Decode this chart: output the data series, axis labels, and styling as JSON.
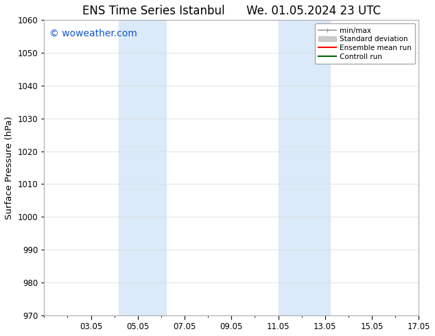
{
  "title_left": "ENS Time Series Istanbul",
  "title_right": "We. 01.05.2024 23 UTC",
  "ylabel": "Surface Pressure (hPa)",
  "ylim": [
    970,
    1060
  ],
  "yticks": [
    970,
    980,
    990,
    1000,
    1010,
    1020,
    1030,
    1040,
    1050,
    1060
  ],
  "xlim": [
    1.0,
    17.0
  ],
  "xtick_positions": [
    3,
    5,
    7,
    9,
    11,
    13,
    15,
    17
  ],
  "xtick_labels": [
    "03.05",
    "05.05",
    "07.05",
    "09.05",
    "11.05",
    "13.05",
    "15.05",
    "17.05"
  ],
  "watermark": "© woweather.com",
  "watermark_color": "#1155cc",
  "bg_color": "#ffffff",
  "plot_bg_color": "#ffffff",
  "shaded_regions": [
    {
      "x_start": 4.2,
      "x_end": 6.2,
      "color": "#daeaf8"
    },
    {
      "x_start": 11.0,
      "x_end": 13.2,
      "color": "#daeaf8"
    }
  ],
  "grid_color": "#dddddd",
  "grid_lw": 0.6,
  "spine_color": "#aaaaaa",
  "title_fontsize": 12,
  "tick_fontsize": 8.5,
  "label_fontsize": 9.5,
  "watermark_fontsize": 10
}
